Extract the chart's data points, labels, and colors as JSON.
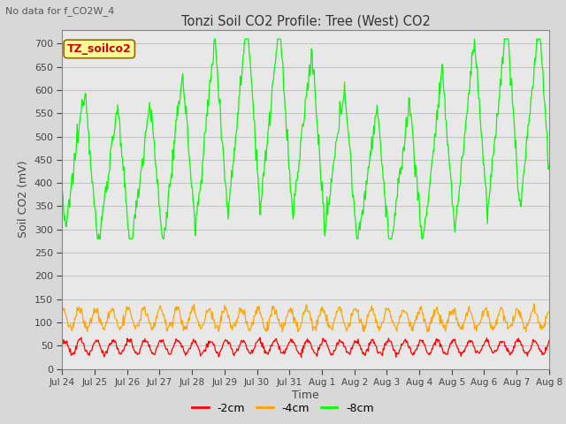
{
  "title": "Tonzi Soil CO2 Profile: Tree (West) CO2",
  "subtitle": "No data for f_CO2W_4",
  "ylabel": "Soil CO2 (mV)",
  "xlabel": "Time",
  "ylim": [
    0,
    730
  ],
  "yticks": [
    0,
    50,
    100,
    150,
    200,
    250,
    300,
    350,
    400,
    450,
    500,
    550,
    600,
    650,
    700
  ],
  "legend_label": "TZ_soilco2",
  "legend_box_facecolor": "#FFFF99",
  "legend_text_color": "#CC0000",
  "line_2cm_color": "#FF0000",
  "line_4cm_color": "#FFA500",
  "line_8cm_color": "#00FF00",
  "line_2cm_label": "-2cm",
  "line_4cm_label": "-4cm",
  "line_8cm_label": "-8cm",
  "bg_color": "#D8D8D8",
  "plot_bg_color": "#E8E8E8",
  "tick_labels": [
    "Jul 24",
    "Jul 25",
    "Jul 26",
    "Jul 27",
    "Jul 28",
    "Jul 29",
    "Jul 30",
    "Jul 31",
    "Aug 1",
    "Aug 2",
    "Aug 3",
    "Aug 4",
    "Aug 5",
    "Aug 6",
    "Aug 7",
    "Aug 8"
  ]
}
